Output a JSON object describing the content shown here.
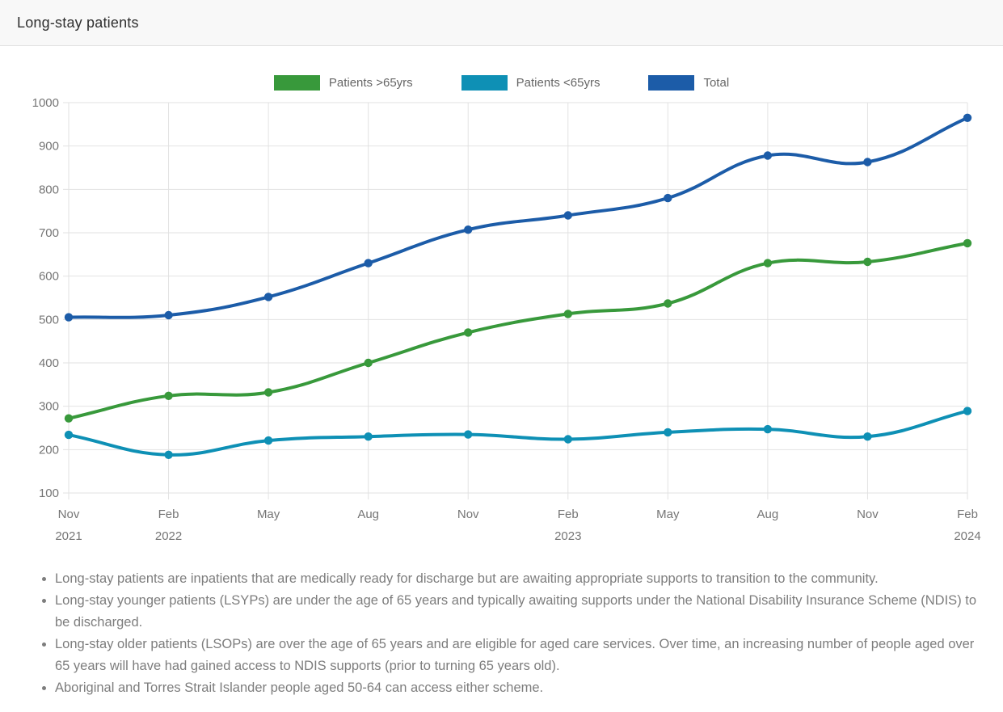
{
  "header": {
    "title": "Long-stay patients"
  },
  "chart_data": {
    "type": "line",
    "title": "Long-stay patients",
    "categories": [
      "Nov 2021",
      "Feb 2022",
      "May 2022",
      "Aug 2022",
      "Nov 2022",
      "Feb 2023",
      "May 2023",
      "Aug 2023",
      "Nov 2023",
      "Feb 2024"
    ],
    "x_tick_labels": [
      {
        "month": "Nov",
        "year": "2021"
      },
      {
        "month": "Feb",
        "year": "2022"
      },
      {
        "month": "May",
        "year": ""
      },
      {
        "month": "Aug",
        "year": ""
      },
      {
        "month": "Nov",
        "year": ""
      },
      {
        "month": "Feb",
        "year": "2023"
      },
      {
        "month": "May",
        "year": ""
      },
      {
        "month": "Aug",
        "year": ""
      },
      {
        "month": "Nov",
        "year": ""
      },
      {
        "month": "Feb",
        "year": "2024"
      }
    ],
    "series": [
      {
        "name": "Patients >65yrs",
        "color": "#38993b",
        "values": [
          272,
          324,
          332,
          400,
          470,
          513,
          537,
          630,
          633,
          676
        ]
      },
      {
        "name": "Patients <65yrs",
        "color": "#0e90b5",
        "values": [
          234,
          188,
          221,
          230,
          235,
          224,
          240,
          247,
          230,
          289
        ]
      },
      {
        "name": "Total",
        "color": "#1c5ca8",
        "values": [
          505,
          510,
          552,
          630,
          707,
          740,
          780,
          878,
          863,
          965
        ]
      }
    ],
    "ylim": [
      100,
      1000
    ],
    "y_ticks": [
      100,
      200,
      300,
      400,
      500,
      600,
      700,
      800,
      900,
      1000
    ],
    "grid": true,
    "legend_position": "top",
    "line_tension": 0.4
  },
  "notes": [
    "Long-stay patients are inpatients that are medically ready for discharge but are awaiting appropriate supports to transition to the community.",
    "Long-stay younger patients (LSYPs) are under the age of 65 years and typically awaiting supports under the National Disability Insurance Scheme (NDIS) to be discharged.",
    "Long-stay older patients (LSOPs) are over the age of 65 years and are eligible for aged care services. Over time, an increasing number of people aged over 65 years will have had gained access to NDIS supports (prior to turning 65 years old).",
    "Aboriginal and Torres Strait Islander people aged 50-64 can access either scheme."
  ]
}
